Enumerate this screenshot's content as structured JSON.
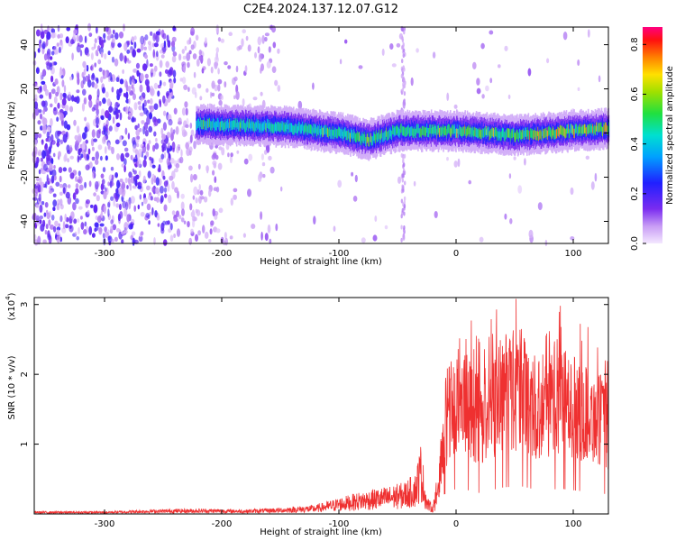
{
  "page_title": "C2E4.2024.137.12.07.G12",
  "colors": {
    "snr_line": "#ef3030",
    "spectrogram_scatter": "#8a2be2",
    "background": "#ffffff"
  },
  "chart_data": [
    {
      "type": "heatmap",
      "title": "",
      "xlabel": "Height of straight line (km)",
      "ylabel": "Frequency (Hz)",
      "xlim": [
        -360,
        130
      ],
      "ylim": [
        -50,
        48
      ],
      "xticks": [
        -300,
        -200,
        -100,
        0,
        100
      ],
      "yticks": [
        40,
        20,
        0,
        -20,
        -40
      ],
      "xtick_labels": [
        "-300",
        "-200",
        "-100",
        "0",
        "100"
      ],
      "ytick_labels": [
        "40",
        "20",
        "0",
        "-20",
        "-40"
      ],
      "colorbar": {
        "label": "Normalized spectral amplitude",
        "range": [
          0.0,
          0.87
        ],
        "ticks": [
          0.0,
          0.2,
          0.4,
          0.6,
          0.8
        ],
        "tick_labels": [
          "0.0",
          "0.2",
          "0.4",
          "0.6",
          "0.8"
        ],
        "colormap": "rainbow"
      },
      "description_band": {
        "x_start": -222,
        "x_end": 130,
        "center_hz": [
          [
            -220,
            4
          ],
          [
            -150,
            3
          ],
          [
            -100,
            0
          ],
          [
            -75,
            -3
          ],
          [
            -50,
            1
          ],
          [
            0,
            1
          ],
          [
            50,
            -1
          ],
          [
            100,
            1
          ],
          [
            130,
            2
          ]
        ],
        "half_width_hz": 6,
        "peak_amplitude": 0.85
      }
    },
    {
      "type": "line",
      "title": "",
      "xlabel": "Height of straight line (km)",
      "ylabel": "SNR (10 * v/v)",
      "y_multiplier_label": "(x10",
      "y_multiplier_exp": "4",
      "y_multiplier_close": ")",
      "xlim": [
        -360,
        130
      ],
      "ylim": [
        0,
        3.1
      ],
      "xticks": [
        -300,
        -200,
        -100,
        0,
        100
      ],
      "yticks": [
        1,
        2,
        3
      ],
      "xtick_labels": [
        "-300",
        "-200",
        "-100",
        "0",
        "100"
      ],
      "ytick_labels": [
        "1",
        "2",
        "3"
      ],
      "series": [
        {
          "envelope_points": [
            [
              -360,
              0.03
            ],
            [
              -300,
              0.03
            ],
            [
              -260,
              0.05
            ],
            [
              -220,
              0.06
            ],
            [
              -180,
              0.05
            ],
            [
              -150,
              0.07
            ],
            [
              -120,
              0.1
            ],
            [
              -100,
              0.18
            ],
            [
              -80,
              0.25
            ],
            [
              -60,
              0.3
            ],
            [
              -45,
              0.35
            ],
            [
              -35,
              0.45
            ],
            [
              -30,
              0.8
            ],
            [
              -25,
              0.2
            ],
            [
              -20,
              0.1
            ],
            [
              -15,
              0.4
            ],
            [
              -10,
              1.4
            ],
            [
              -5,
              1.6
            ],
            [
              0,
              1.8
            ],
            [
              10,
              1.7
            ],
            [
              20,
              1.5
            ],
            [
              40,
              1.9
            ],
            [
              55,
              2.0
            ],
            [
              70,
              1.7
            ],
            [
              90,
              1.8
            ],
            [
              110,
              1.6
            ],
            [
              130,
              1.4
            ]
          ]
        }
      ]
    }
  ]
}
